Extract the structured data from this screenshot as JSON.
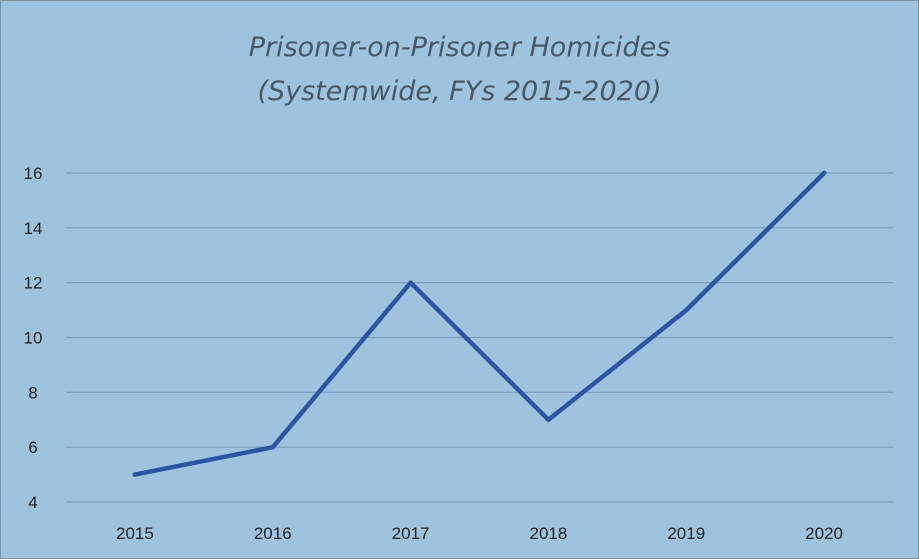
{
  "chart_data": {
    "type": "line",
    "title": "Prisoner-on-Prisoner Homicides",
    "subtitle": "(Systemwide, FYs 2015-2020)",
    "xlabel": "",
    "ylabel": "",
    "x": [
      "2015",
      "2016",
      "2017",
      "2018",
      "2019",
      "2020"
    ],
    "series": [
      {
        "values": [
          5,
          6,
          12,
          7,
          11,
          16
        ]
      }
    ],
    "ylim": [
      4,
      16
    ],
    "yticks": [
      4,
      6,
      8,
      10,
      12,
      14,
      16
    ],
    "grid": true,
    "legend": "none",
    "colors": {
      "background": "#9dc3df",
      "line": "#2e54a4",
      "grid": "#7a9dbb",
      "text": "#222222",
      "title": "#4a5866"
    }
  }
}
